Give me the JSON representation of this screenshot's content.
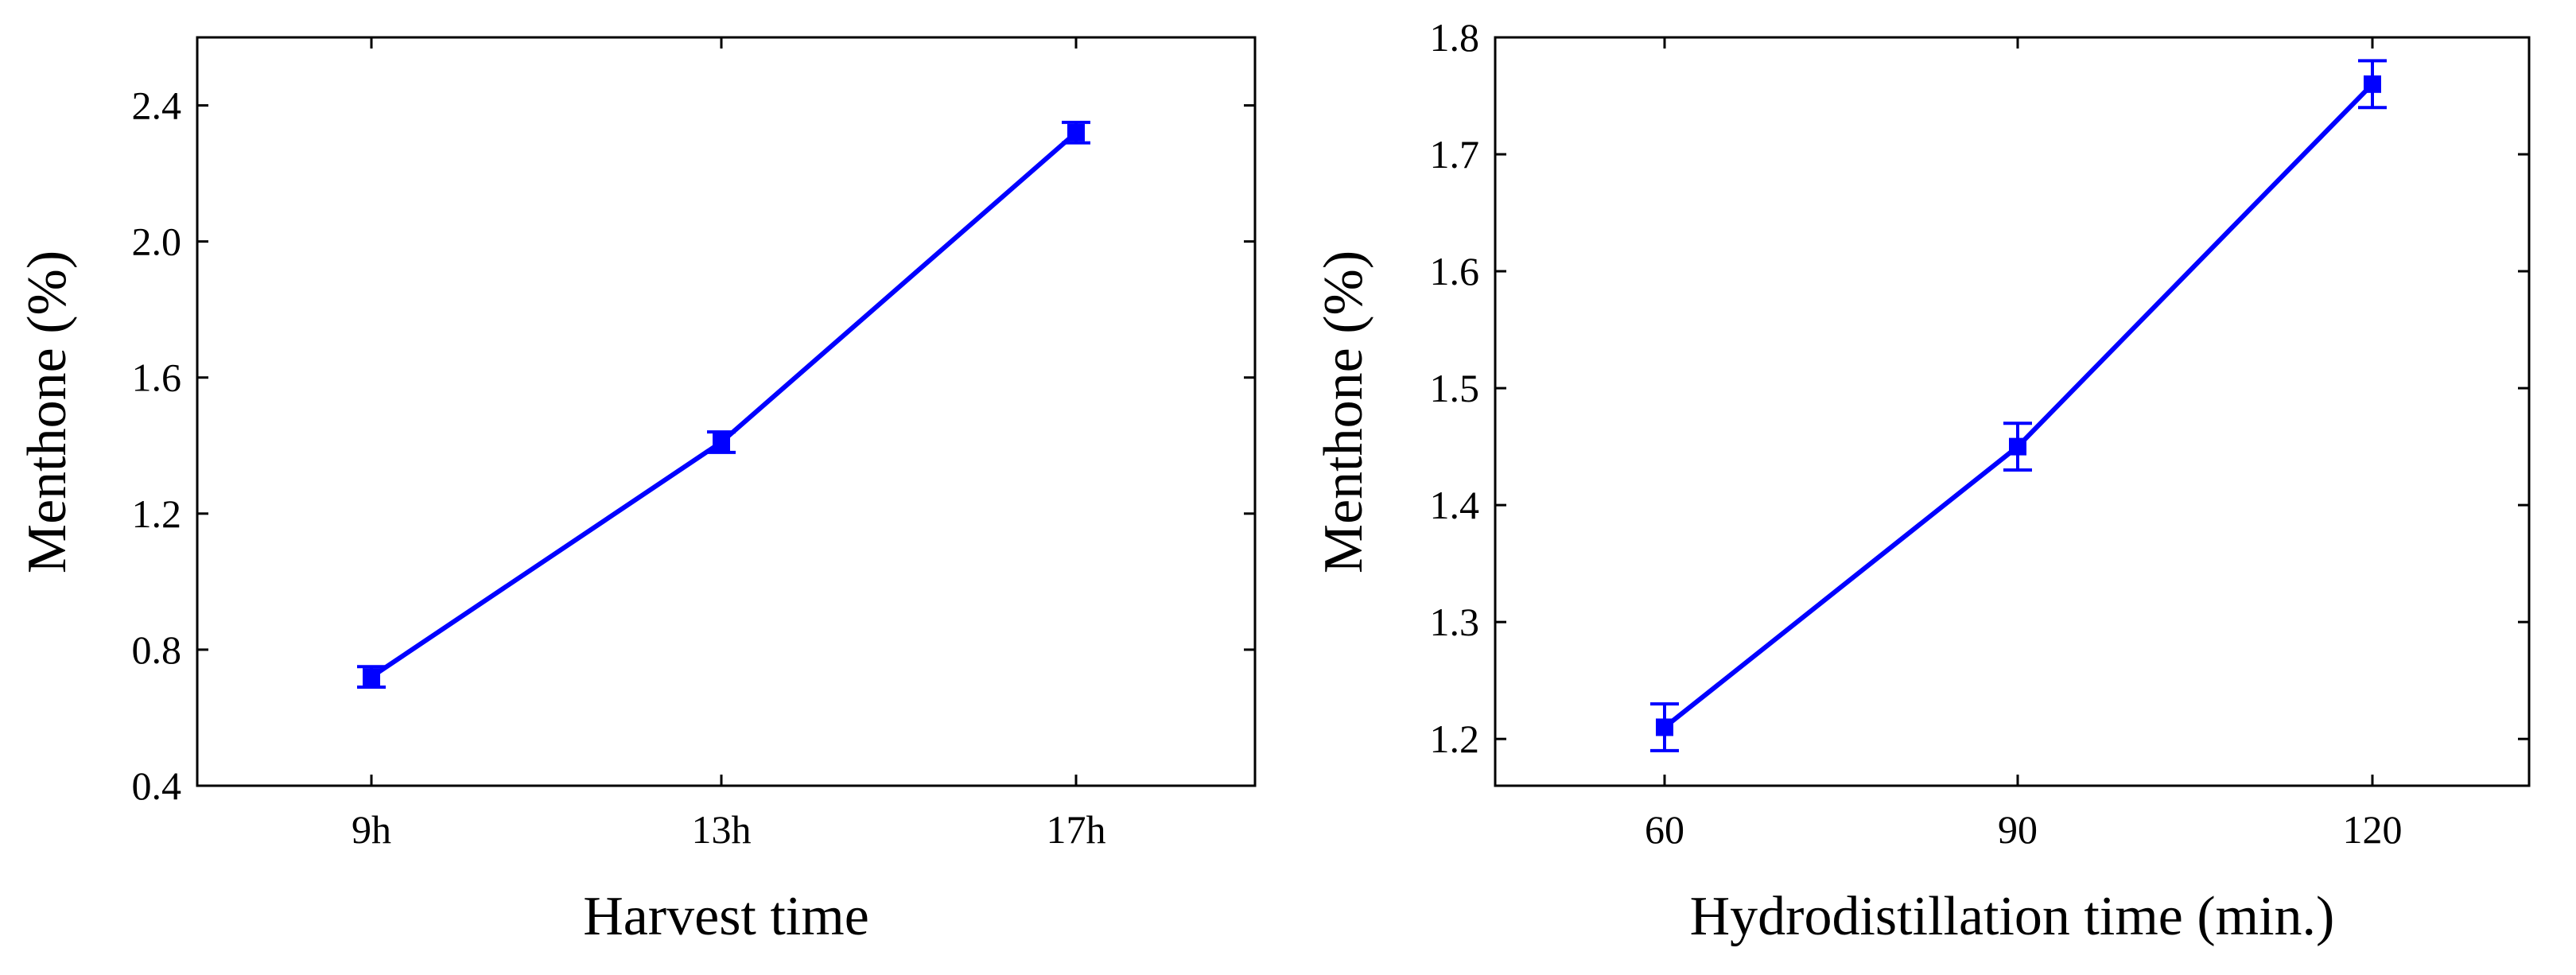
{
  "chart_data": [
    {
      "type": "line",
      "title": "",
      "xlabel": "Harvest time",
      "ylabel": "Menthone (%)",
      "categories": [
        "9h",
        "13h",
        "17h"
      ],
      "series": [
        {
          "name": "Menthone",
          "values": [
            0.72,
            1.41,
            2.32
          ],
          "errors": [
            0.03,
            0.03,
            0.03
          ],
          "color": "#0000ff"
        }
      ],
      "ylim": [
        0.4,
        2.6
      ],
      "yticks": [
        "0.4",
        "0.8",
        "1.2",
        "1.6",
        "2.0",
        "2.4"
      ],
      "grid": false
    },
    {
      "type": "line",
      "title": "",
      "xlabel": "Hydrodistillation time (min.)",
      "ylabel": "Menthone (%)",
      "categories": [
        "60",
        "90",
        "120"
      ],
      "series": [
        {
          "name": "Menthone",
          "values": [
            1.21,
            1.45,
            1.76
          ],
          "errors": [
            0.02,
            0.02,
            0.02
          ],
          "color": "#0000ff"
        }
      ],
      "ylim": [
        1.16,
        1.8
      ],
      "yticks": [
        "1.2",
        "1.3",
        "1.4",
        "1.5",
        "1.6",
        "1.7",
        "1.8"
      ],
      "grid": false
    }
  ]
}
